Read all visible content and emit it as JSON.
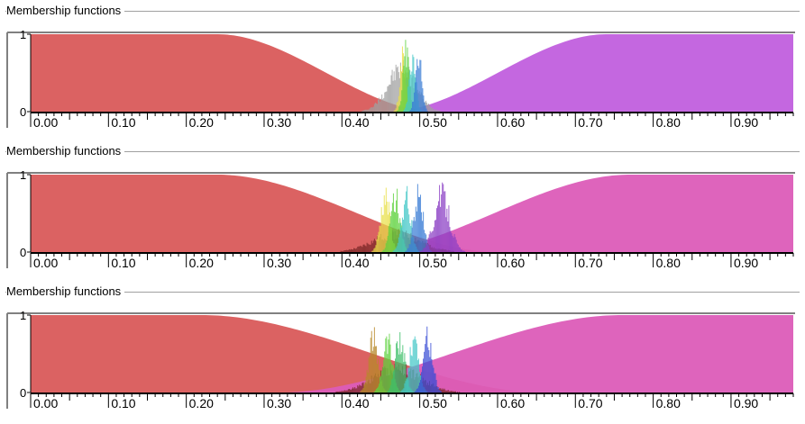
{
  "panels": [
    {
      "title": "Membership functions"
    },
    {
      "title": "Membership functions"
    },
    {
      "title": "Membership functions"
    }
  ],
  "chart_data": [
    {
      "type": "area",
      "title": "Membership functions",
      "xlim": [
        0,
        0.98
      ],
      "ylim": [
        0,
        1
      ],
      "x_ticks": [
        "0.00",
        "0.10",
        "0.20",
        "0.30",
        "0.40",
        "0.50",
        "0.60",
        "0.70",
        "0.80",
        "0.90"
      ],
      "y_ticks": [
        "1",
        "0"
      ],
      "grid": false,
      "colors": {
        "low": "#d95a5a",
        "high": "#c15fde"
      },
      "membership_functions": [
        {
          "shape": "decreasing_s",
          "full_until": 0.24,
          "zero_from": 0.52,
          "color": "#d95a5a"
        },
        {
          "shape": "increasing_s",
          "zero_until": 0.46,
          "full_from": 0.74,
          "color": "#c15fde"
        }
      ],
      "histograms": [
        {
          "center": 0.476,
          "spread": 0.018,
          "peak": 0.7,
          "color": "#a0a0a0"
        },
        {
          "center": 0.478,
          "spread": 0.004,
          "peak": 0.9,
          "color": "#e8e04a"
        },
        {
          "center": 0.482,
          "spread": 0.004,
          "peak": 0.95,
          "color": "#5fd23f"
        },
        {
          "center": 0.49,
          "spread": 0.004,
          "peak": 0.9,
          "color": "#45c8c8"
        },
        {
          "center": 0.498,
          "spread": 0.004,
          "peak": 0.96,
          "color": "#3b7dd6"
        }
      ]
    },
    {
      "type": "area",
      "title": "Membership functions",
      "xlim": [
        0,
        0.98
      ],
      "ylim": [
        0,
        1
      ],
      "x_ticks": [
        "0.00",
        "0.10",
        "0.20",
        "0.30",
        "0.40",
        "0.50",
        "0.60",
        "0.70",
        "0.80",
        "0.90"
      ],
      "y_ticks": [
        "1",
        "0"
      ],
      "grid": false,
      "colors": {
        "low": "#d95a5a",
        "high": "#dc5cb8"
      },
      "membership_functions": [
        {
          "shape": "decreasing_s",
          "full_until": 0.24,
          "zero_from": 0.6,
          "color": "#d95a5a"
        },
        {
          "shape": "increasing_s",
          "zero_until": 0.42,
          "full_from": 0.77,
          "color": "#dc5cb8"
        }
      ],
      "histograms": [
        {
          "center": 0.47,
          "spread": 0.03,
          "peak": 0.3,
          "color": "#7a2828"
        },
        {
          "center": 0.455,
          "spread": 0.006,
          "peak": 0.9,
          "color": "#e8e04a"
        },
        {
          "center": 0.468,
          "spread": 0.006,
          "peak": 0.92,
          "color": "#5fd23f"
        },
        {
          "center": 0.482,
          "spread": 0.006,
          "peak": 0.88,
          "color": "#45c8c8"
        },
        {
          "center": 0.498,
          "spread": 0.006,
          "peak": 0.92,
          "color": "#3b7dd6"
        },
        {
          "center": 0.528,
          "spread": 0.01,
          "peak": 0.92,
          "color": "#8b3fc4"
        }
      ]
    },
    {
      "type": "area",
      "title": "Membership functions",
      "xlim": [
        0,
        0.98
      ],
      "ylim": [
        0,
        1
      ],
      "x_ticks": [
        "0.00",
        "0.10",
        "0.20",
        "0.30",
        "0.40",
        "0.50",
        "0.60",
        "0.70",
        "0.80",
        "0.90"
      ],
      "y_ticks": [
        "1",
        "0"
      ],
      "grid": false,
      "colors": {
        "low": "#d95a5a",
        "high": "#dc5cb8"
      },
      "membership_functions": [
        {
          "shape": "decreasing_s",
          "full_until": 0.22,
          "zero_from": 0.66,
          "color": "#d95a5a"
        },
        {
          "shape": "increasing_s",
          "zero_until": 0.32,
          "full_from": 0.76,
          "color": "#dc5cb8"
        }
      ],
      "histograms": [
        {
          "center": 0.47,
          "spread": 0.03,
          "peak": 0.4,
          "color": "#7a2828"
        },
        {
          "center": 0.44,
          "spread": 0.006,
          "peak": 0.88,
          "color": "#b88a2a"
        },
        {
          "center": 0.458,
          "spread": 0.006,
          "peak": 0.9,
          "color": "#5fd23f"
        },
        {
          "center": 0.474,
          "spread": 0.006,
          "peak": 0.88,
          "color": "#3fbf6a"
        },
        {
          "center": 0.492,
          "spread": 0.006,
          "peak": 0.9,
          "color": "#45c8c8"
        },
        {
          "center": 0.51,
          "spread": 0.006,
          "peak": 0.9,
          "color": "#3b4fd6"
        }
      ]
    }
  ]
}
